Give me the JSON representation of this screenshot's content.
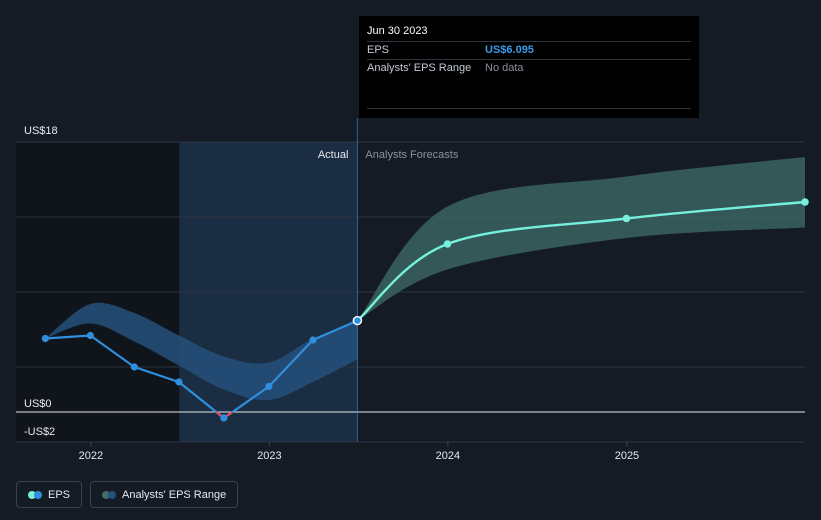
{
  "colors": {
    "eps_actual": "#2f8fdd",
    "eps_forecast": "#76f0dc",
    "negative_segment": "#e0505a",
    "range_actual": "#24507a",
    "range_forecast": "#3d6e68",
    "actual_shade": "#1b2d42",
    "tooltip_eps": "#3b9ae8"
  },
  "tooltip": {
    "date": "Jun 30 2023",
    "rows": [
      {
        "label": "EPS",
        "value": "US$6.095"
      },
      {
        "label": "Analysts' EPS Range",
        "value": "No data"
      }
    ]
  },
  "region_labels": {
    "actual": "Actual",
    "forecast": "Analysts Forecasts"
  },
  "legend": [
    {
      "label": "EPS",
      "icon": "eps-dots-icon"
    },
    {
      "label": "Analysts' EPS Range",
      "icon": "range-dots-icon"
    }
  ],
  "chart_data": {
    "type": "line",
    "y_tick_labels": [
      {
        "value": 18,
        "label": "US$18"
      },
      {
        "value": 0,
        "label": "US$0"
      },
      {
        "value": -2,
        "label": "-US$2"
      }
    ],
    "ylim": [
      -2,
      18
    ],
    "xlim": [
      "2021-08-01",
      "2025-12-31"
    ],
    "x_ticks": [
      {
        "date": "2022-01-01",
        "label": "2022"
      },
      {
        "date": "2023-01-01",
        "label": "2023"
      },
      {
        "date": "2024-01-01",
        "label": "2024"
      },
      {
        "date": "2025-01-01",
        "label": "2025"
      }
    ],
    "grid": true,
    "actual_shade_start": "2022-07-01",
    "split_date": "2023-06-30",
    "series": [
      {
        "name": "EPS",
        "kind": "actual",
        "points": [
          {
            "x": "2021-09-30",
            "y": 4.9
          },
          {
            "x": "2021-12-31",
            "y": 5.1
          },
          {
            "x": "2022-03-31",
            "y": 3.0
          },
          {
            "x": "2022-06-30",
            "y": 2.0
          },
          {
            "x": "2022-09-30",
            "y": -0.4
          },
          {
            "x": "2022-12-31",
            "y": 1.7
          },
          {
            "x": "2023-03-31",
            "y": 4.8
          },
          {
            "x": "2023-06-30",
            "y": 6.095
          }
        ]
      },
      {
        "name": "EPS",
        "kind": "forecast",
        "points": [
          {
            "x": "2023-06-30",
            "y": 6.095
          },
          {
            "x": "2023-12-31",
            "y": 11.2
          },
          {
            "x": "2024-12-31",
            "y": 12.9
          },
          {
            "x": "2025-12-31",
            "y": 14.0
          }
        ],
        "markers": [
          {
            "x": "2023-12-31",
            "y": 11.2
          },
          {
            "x": "2024-12-31",
            "y": 12.9
          },
          {
            "x": "2025-12-31",
            "y": 14.0
          }
        ]
      }
    ],
    "ranges": [
      {
        "name": "Analysts' EPS Range",
        "kind": "actual",
        "points": [
          {
            "x": "2021-09-30",
            "low": 4.9,
            "high": 4.9
          },
          {
            "x": "2021-12-31",
            "low": 5.9,
            "high": 7.2
          },
          {
            "x": "2022-03-31",
            "low": 4.7,
            "high": 6.6
          },
          {
            "x": "2022-06-30",
            "low": 3.1,
            "high": 5.1
          },
          {
            "x": "2022-09-30",
            "low": 1.5,
            "high": 3.7
          },
          {
            "x": "2022-12-31",
            "low": 0.8,
            "high": 3.3
          },
          {
            "x": "2023-03-31",
            "low": 2.0,
            "high": 4.9
          },
          {
            "x": "2023-06-30",
            "low": 3.5,
            "high": 6.1
          }
        ]
      },
      {
        "name": "Analysts' EPS Range",
        "kind": "forecast",
        "points": [
          {
            "x": "2023-06-30",
            "low": 6.095,
            "high": 6.095
          },
          {
            "x": "2023-12-31",
            "low": 9.5,
            "high": 13.7
          },
          {
            "x": "2024-12-31",
            "low": 11.6,
            "high": 15.7
          },
          {
            "x": "2025-12-31",
            "low": 12.3,
            "high": 17.0
          }
        ]
      }
    ]
  }
}
